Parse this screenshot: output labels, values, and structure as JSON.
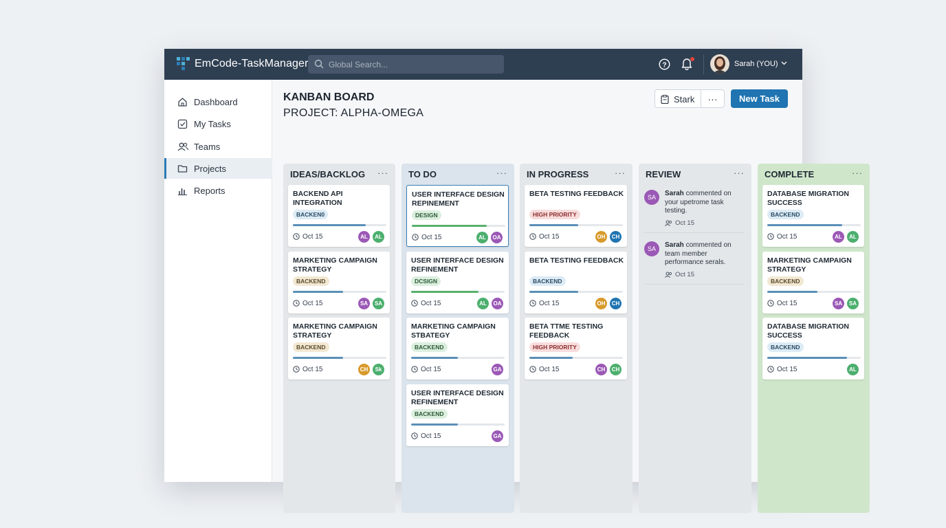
{
  "app": {
    "title": "EmCode-TaskManager"
  },
  "search": {
    "placeholder": "Global Search..."
  },
  "user": {
    "name": "Sarah (YOU)"
  },
  "sidebar": {
    "items": [
      {
        "label": "Dashboard",
        "icon": "home-icon"
      },
      {
        "label": "My Tasks",
        "icon": "checkbox-icon"
      },
      {
        "label": "Teams",
        "icon": "users-icon"
      },
      {
        "label": "Projects",
        "icon": "folder-icon",
        "active": true
      },
      {
        "label": "Reports",
        "icon": "bar-chart-icon"
      }
    ]
  },
  "board": {
    "title": "KANBAN BOARD",
    "subtitle": "PROJECT: ALPHA-OMEGA",
    "stark_label": "Stark",
    "more_label": "···",
    "new_task_label": "New Task"
  },
  "colors": {
    "accent": "#1f74b1",
    "topbar": "#2f3f52",
    "progress_blue": "#5a8fb8",
    "progress_green": "#58b06c",
    "complete_col": "#cfe6cb",
    "todo_col": "#dbe3ec"
  },
  "columns": [
    {
      "title": "IDEAS/BACKLOG",
      "menu": "···",
      "cards": [
        {
          "title": "BACKEND API INTEGRATION",
          "tag": "BACKEN0",
          "tag_color": "blue",
          "progress": 0.78,
          "bar": "blue",
          "date": "Oct 15",
          "avatars": [
            {
              "t": "AL",
              "c": "#9b59b6"
            },
            {
              "t": "AL",
              "c": "#4caf6e"
            }
          ]
        },
        {
          "title": "MARKETING CAMPAIGN STRATEGY",
          "tag": "BACKEND",
          "tag_color": "beige",
          "progress": 0.54,
          "bar": "blue",
          "date": "Oct 15",
          "avatars": [
            {
              "t": "SA",
              "c": "#9b59b6"
            },
            {
              "t": "SA",
              "c": "#4caf6e"
            }
          ]
        },
        {
          "title": "MARKETING CAMPAIGN STRATEGY",
          "tag": "BACKEND",
          "tag_color": "beige",
          "progress": 0.54,
          "bar": "blue",
          "date": "Oct 15",
          "avatars": [
            {
              "t": "CH",
              "c": "#d89a2b"
            },
            {
              "t": "Sk",
              "c": "#4caf6e"
            }
          ]
        }
      ]
    },
    {
      "title": "TO DO",
      "menu": "···",
      "cards": [
        {
          "title": "USER INTERFACE DESIGN REPINEMENT",
          "tag": "DESIGN",
          "tag_color": "green",
          "progress": 0.8,
          "bar": "green",
          "date": "Oct 15",
          "selected": true,
          "avatars": [
            {
              "t": "AL",
              "c": "#4caf6e"
            },
            {
              "t": "OA",
              "c": "#9b59b6"
            }
          ]
        },
        {
          "title": "USER INTERFACE DESIGN REFINEMENT",
          "tag": "DCSIGN",
          "tag_color": "green",
          "progress": 0.72,
          "bar": "green",
          "date": "Oct 15",
          "avatars": [
            {
              "t": "AL",
              "c": "#4caf6e"
            },
            {
              "t": "OA",
              "c": "#9b59b6"
            }
          ]
        },
        {
          "title": "MARKETING CAMPAIGN STBATEGY",
          "tag": "BACKEND",
          "tag_color": "green",
          "progress": 0.5,
          "bar": "blue",
          "date": "Oct 15",
          "avatars": [
            {
              "t": "GA",
              "c": "#9b59b6"
            }
          ]
        },
        {
          "title": "USER INTERFACE DESIGN REFINEMENT",
          "tag": "BACKEND",
          "tag_color": "green",
          "progress": 0.5,
          "bar": "blue",
          "date": "Oct 15",
          "avatars": [
            {
              "t": "GA",
              "c": "#9b59b6"
            }
          ]
        }
      ]
    },
    {
      "title": "IN PROGRESS",
      "menu": "···",
      "cards": [
        {
          "title": "BETA TESTING FEEDBACK",
          "tag": "HIGH PRIORITY",
          "tag_color": "red",
          "progress": 0.52,
          "bar": "blue",
          "date": "Oct 15",
          "avatars": [
            {
              "t": "OH",
              "c": "#d89a2b"
            },
            {
              "t": "CH",
              "c": "#1f74b1"
            }
          ]
        },
        {
          "title": "BETA TESTING FEEDBACK",
          "tag": "BACKEND",
          "tag_color": "blue",
          "progress": 0.52,
          "bar": "blue",
          "date": "Oct 15",
          "avatars": [
            {
              "t": "OH",
              "c": "#d89a2b"
            },
            {
              "t": "CH",
              "c": "#1f74b1"
            }
          ]
        },
        {
          "title": "BETA TTME TESTING FEEDBACK",
          "tag": "HIGH PRIORITY",
          "tag_color": "red",
          "progress": 0.46,
          "bar": "blue",
          "date": "Oct 15",
          "avatars": [
            {
              "t": "CH",
              "c": "#9b59b6"
            },
            {
              "t": "CH",
              "c": "#4caf6e"
            }
          ]
        }
      ]
    },
    {
      "title": "REVIEW",
      "menu": "···",
      "comments": [
        {
          "avatar": "SA",
          "author": "Sarah",
          "text": " commented on your upetrome task testing.",
          "date": "Oct 15"
        },
        {
          "avatar": "SA",
          "author": "Sarah",
          "text": " commented on team member performance serals.",
          "date": "Oct 15"
        }
      ]
    },
    {
      "title": "COMPLETE",
      "menu": "···",
      "cards": [
        {
          "title": "DATABASE MIGRATION SUCCESS",
          "tag": "BACKEND",
          "tag_color": "blue",
          "progress": 0.8,
          "bar": "blue",
          "date": "Oct 15",
          "avatars": [
            {
              "t": "AL",
              "c": "#9b59b6"
            },
            {
              "t": "AL",
              "c": "#4caf6e"
            }
          ]
        },
        {
          "title": "MARKETING CAMPAIGN STRATEGY",
          "tag": "BACKEND",
          "tag_color": "beige",
          "progress": 0.54,
          "bar": "blue",
          "date": "Oct 15",
          "avatars": [
            {
              "t": "SA",
              "c": "#9b59b6"
            },
            {
              "t": "SA",
              "c": "#4caf6e"
            }
          ]
        },
        {
          "title": "DATABASE MIGRATION SUCCESS",
          "tag": "BACKEND",
          "tag_color": "blue",
          "progress": 0.85,
          "bar": "blue",
          "date": "Oct 15",
          "avatars": [
            {
              "t": "AL",
              "c": "#4caf6e"
            }
          ]
        }
      ]
    }
  ]
}
